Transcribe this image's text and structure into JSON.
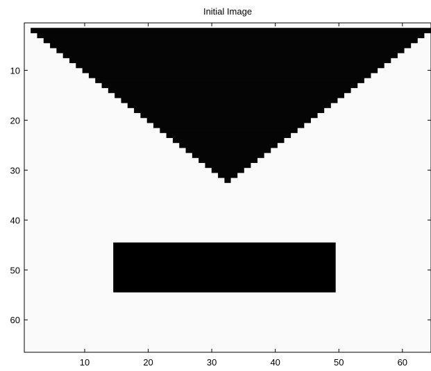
{
  "chart_data": {
    "type": "heatmap",
    "title": "Initial Image",
    "xlabel": "",
    "ylabel": "",
    "colormap": "gray",
    "colors": {
      "min": "#000000",
      "max": "#ffffff",
      "background": "#f9f9f9",
      "axis": "#000000"
    },
    "grid": false,
    "y_direction": "reversed",
    "image_size": {
      "rows": 66,
      "cols": 64
    },
    "xlim": [
      0.5,
      64.5
    ],
    "ylim": [
      0.5,
      66.5
    ],
    "xticks": [
      10,
      20,
      30,
      40,
      50,
      60
    ],
    "yticks": [
      10,
      20,
      30,
      40,
      50,
      60
    ],
    "xtick_labels": [
      "10",
      "20",
      "30",
      "40",
      "50",
      "60"
    ],
    "ytick_labels": [
      "10",
      "20",
      "30",
      "40",
      "50",
      "60"
    ],
    "background_intensity": 0.98,
    "shapes": [
      {
        "name": "inverted-triangle",
        "intensity": 0.02,
        "top_row": 2,
        "top_col_left": 2,
        "top_col_right": 64,
        "apex_row": 32,
        "apex_col": 32.5
      },
      {
        "name": "rectangle",
        "intensity": 0.0,
        "rows": [
          45,
          54
        ],
        "cols": [
          15,
          49
        ]
      }
    ]
  }
}
